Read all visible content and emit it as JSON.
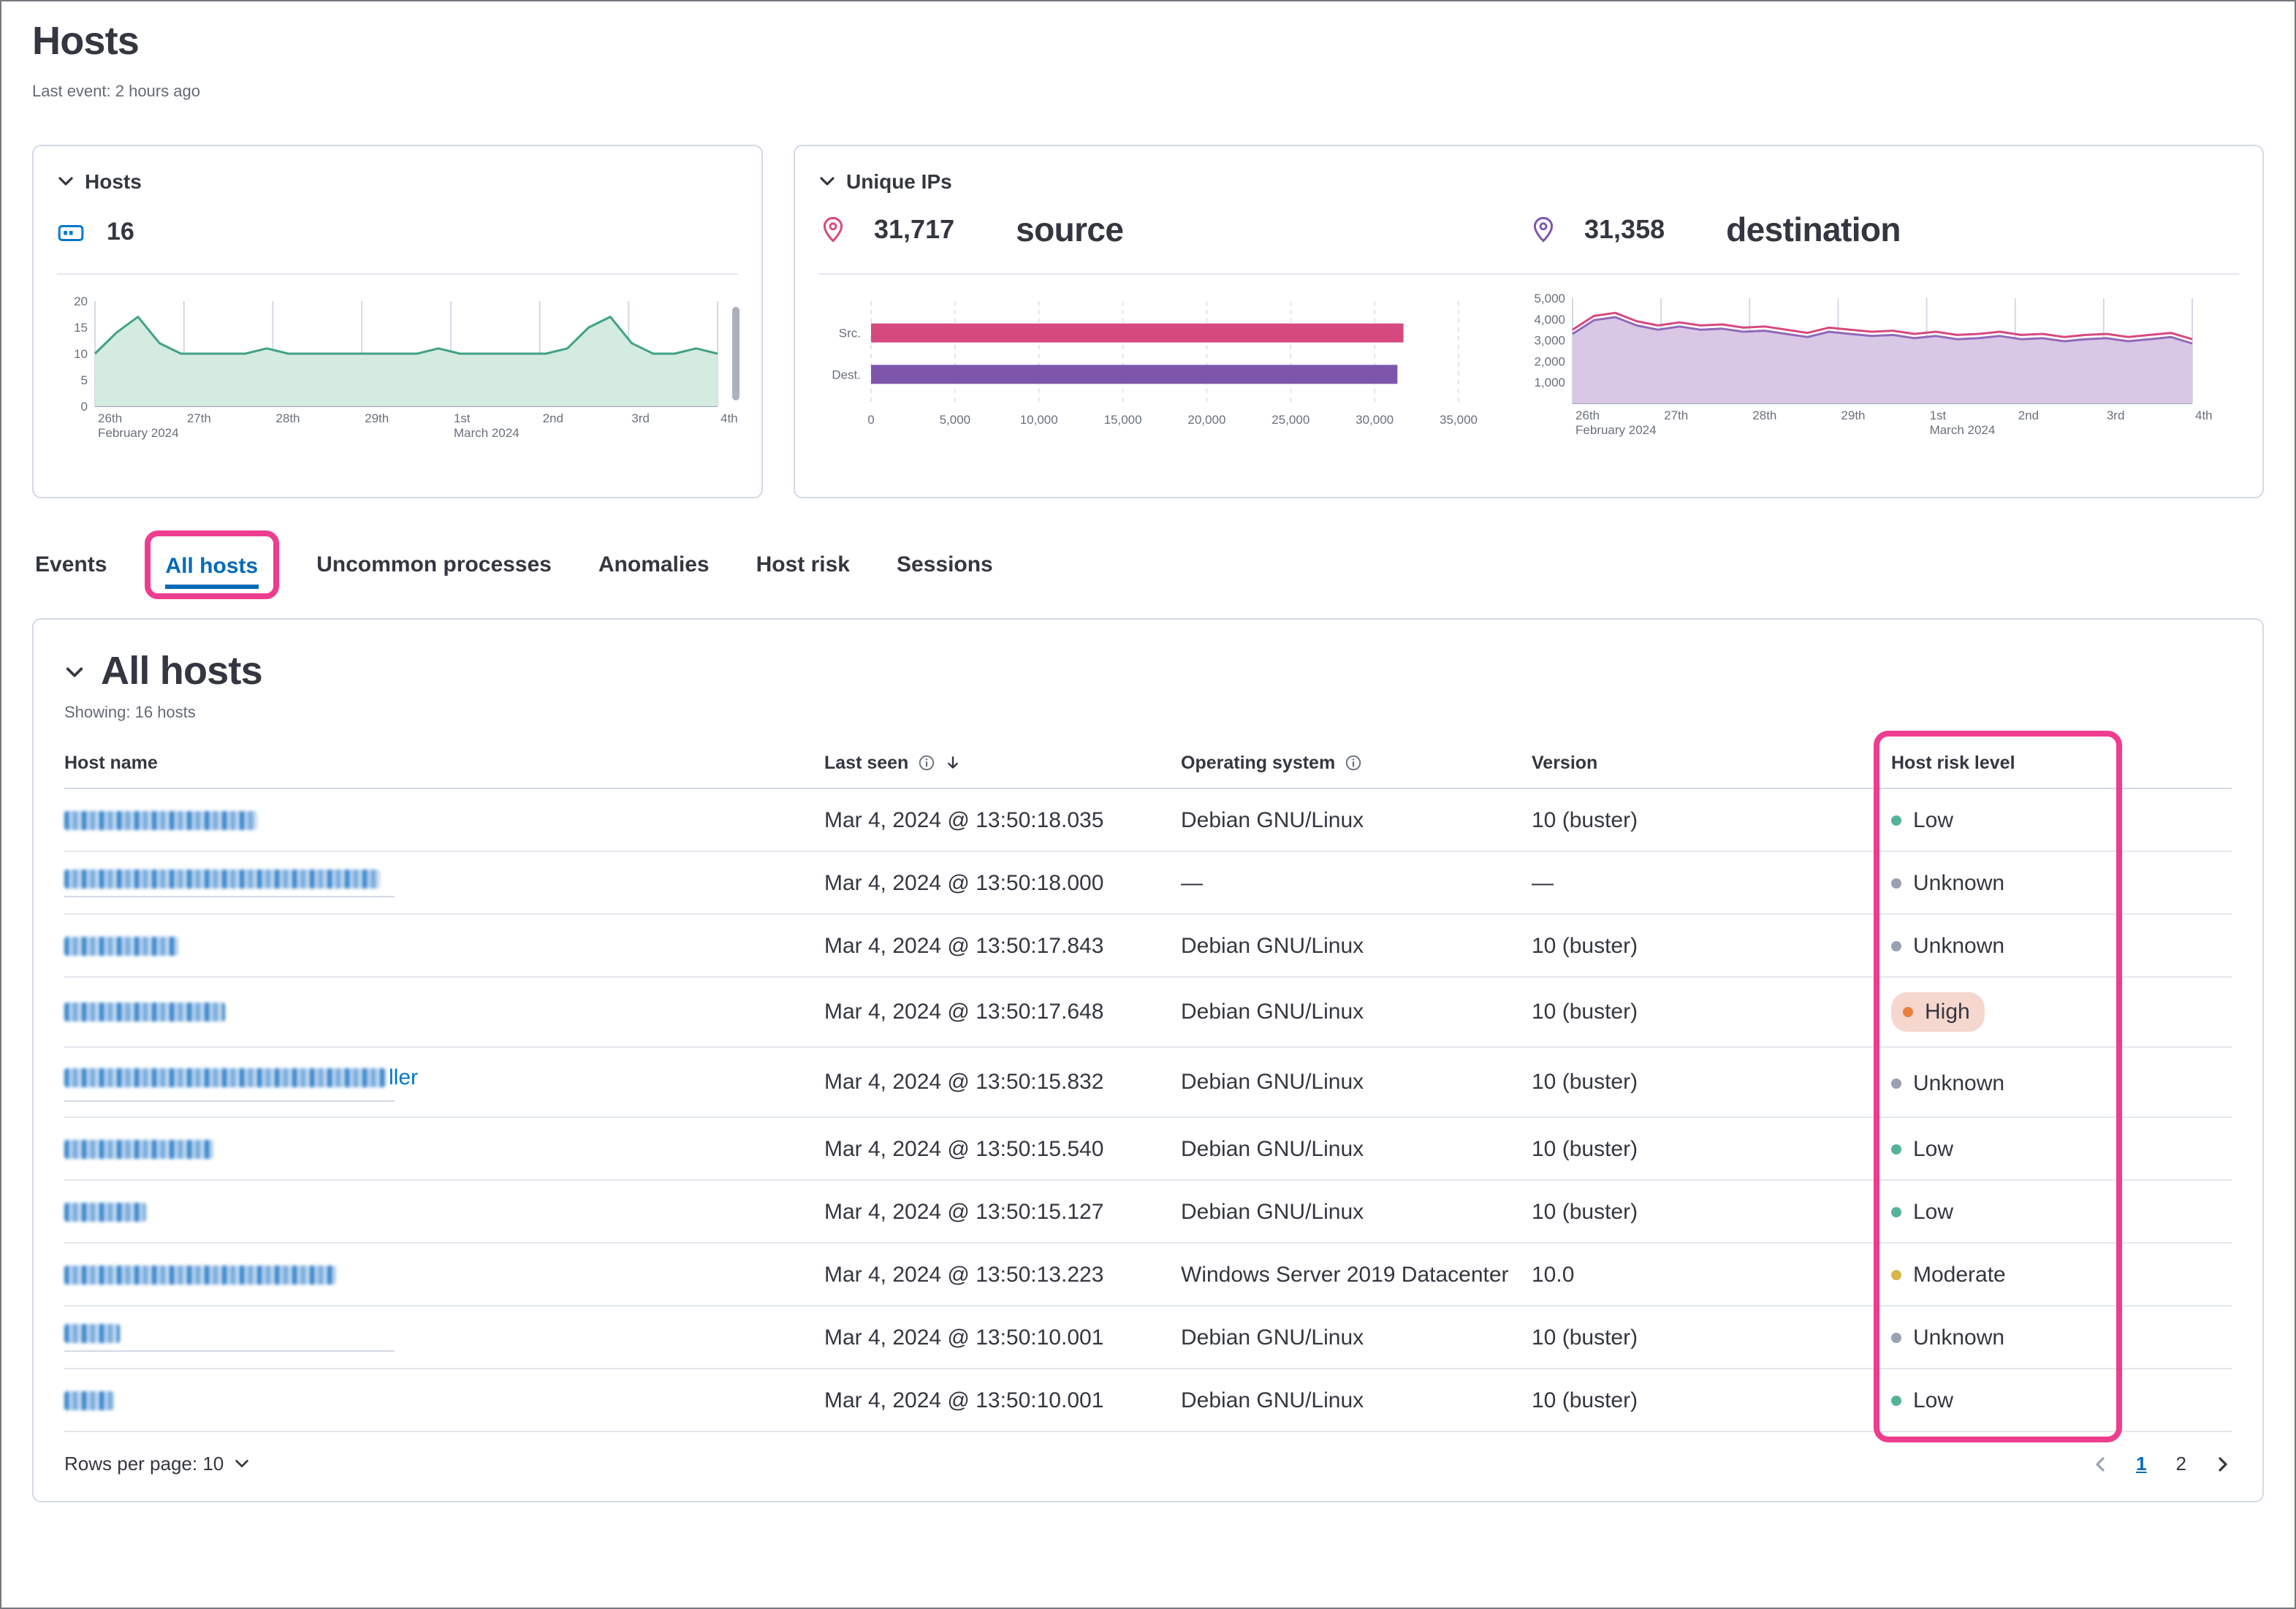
{
  "annotation_color": "#ee3d8f",
  "page": {
    "title": "Hosts",
    "last_event": "Last event: 2 hours ago"
  },
  "hosts_panel": {
    "title": "Hosts",
    "count": "16",
    "chart": {
      "type": "area",
      "ylim": [
        0,
        20
      ],
      "yticks": [
        {
          "v": 0,
          "l": "0"
        },
        {
          "v": 5,
          "l": "5"
        },
        {
          "v": 10,
          "l": "10"
        },
        {
          "v": 15,
          "l": "15"
        },
        {
          "v": 20,
          "l": "20"
        }
      ],
      "xticks": [
        {
          "l": "26th",
          "sub": "February 2024"
        },
        {
          "l": "27th"
        },
        {
          "l": "28th"
        },
        {
          "l": "29th"
        },
        {
          "l": "1st",
          "sub": "March 2024"
        },
        {
          "l": "2nd"
        },
        {
          "l": "3rd"
        },
        {
          "l": "4th"
        }
      ],
      "series": [
        {
          "name": "hosts",
          "color": "#41a287",
          "fill": "#d4ebdf",
          "values": [
            10,
            14,
            17,
            12,
            10,
            10,
            10,
            10,
            11,
            10,
            10,
            10,
            10,
            10,
            10,
            10,
            11,
            10,
            10,
            10,
            10,
            10,
            11,
            15,
            17,
            12,
            10,
            10,
            11,
            10
          ]
        }
      ]
    }
  },
  "unique_ips_panel": {
    "title": "Unique IPs",
    "source": {
      "count": "31,717",
      "label": "source",
      "color": "#d6497f"
    },
    "destination": {
      "count": "31,358",
      "label": "destination",
      "color": "#7d56ac"
    },
    "bar_chart": {
      "type": "bar",
      "categories": [
        "Src.",
        "Dest."
      ],
      "values": [
        31717,
        31358
      ],
      "colors": [
        "#d6497f",
        "#7d56ac"
      ],
      "xlim": [
        0,
        35000
      ],
      "xticks": [
        {
          "v": 0,
          "l": "0"
        },
        {
          "v": 5000,
          "l": "5,000"
        },
        {
          "v": 10000,
          "l": "10,000"
        },
        {
          "v": 15000,
          "l": "15,000"
        },
        {
          "v": 20000,
          "l": "20,000"
        },
        {
          "v": 25000,
          "l": "25,000"
        },
        {
          "v": 30000,
          "l": "30,000"
        },
        {
          "v": 35000,
          "l": "35,000"
        }
      ]
    },
    "area_chart": {
      "type": "area",
      "ylim": [
        0,
        5000
      ],
      "yticks": [
        {
          "v": 1000,
          "l": "1,000"
        },
        {
          "v": 2000,
          "l": "2,000"
        },
        {
          "v": 3000,
          "l": "3,000"
        },
        {
          "v": 4000,
          "l": "4,000"
        },
        {
          "v": 5000,
          "l": "5,000"
        }
      ],
      "xticks": [
        {
          "l": "26th",
          "sub": "February 2024"
        },
        {
          "l": "27th"
        },
        {
          "l": "28th"
        },
        {
          "l": "29th"
        },
        {
          "l": "1st",
          "sub": "March 2024"
        },
        {
          "l": "2nd"
        },
        {
          "l": "3rd"
        },
        {
          "l": "4th"
        }
      ],
      "series": [
        {
          "name": "destination",
          "color": "#9069b8",
          "fill": "#d9c7e6",
          "values": [
            3300,
            3950,
            4100,
            3700,
            3500,
            3650,
            3500,
            3550,
            3400,
            3450,
            3300,
            3150,
            3400,
            3300,
            3200,
            3250,
            3100,
            3200,
            3050,
            3100,
            3200,
            3050,
            3100,
            2950,
            3050,
            3100,
            2950,
            3050,
            3150,
            2850
          ]
        },
        {
          "name": "source",
          "color": "#d6497f",
          "values": [
            3500,
            4150,
            4300,
            3900,
            3700,
            3850,
            3700,
            3750,
            3600,
            3650,
            3500,
            3350,
            3600,
            3500,
            3400,
            3450,
            3300,
            3400,
            3250,
            3300,
            3400,
            3250,
            3300,
            3150,
            3250,
            3300,
            3150,
            3250,
            3350,
            3050
          ]
        }
      ]
    }
  },
  "tabs": [
    {
      "label": "Events"
    },
    {
      "label": "All hosts",
      "selected": true,
      "annotated": true
    },
    {
      "label": "Uncommon processes"
    },
    {
      "label": "Anomalies"
    },
    {
      "label": "Host risk"
    },
    {
      "label": "Sessions"
    }
  ],
  "all_hosts": {
    "title": "All hosts",
    "showing": "Showing: 16 hosts",
    "columns": [
      "Host name",
      "Last seen",
      "Operating system",
      "Version",
      "Host risk level"
    ],
    "risk_colors": {
      "Low": "#54b399",
      "Unknown": "#98a2b3",
      "High": "#e8803d",
      "Moderate": "#d6b54a"
    },
    "rows": [
      {
        "name_redacted": true,
        "name_width": 132,
        "last_seen": "Mar 4, 2024 @ 13:50:18.035",
        "os": "Debian GNU/Linux",
        "version": "10 (buster)",
        "risk": "Low"
      },
      {
        "name_redacted": true,
        "name_width": 216,
        "underline": 226,
        "last_seen": "Mar 4, 2024 @ 13:50:18.000",
        "os": "—",
        "version": "—",
        "risk": "Unknown"
      },
      {
        "name_redacted": true,
        "name_width": 78,
        "last_seen": "Mar 4, 2024 @ 13:50:17.843",
        "os": "Debian GNU/Linux",
        "version": "10 (buster)",
        "risk": "Unknown"
      },
      {
        "name_redacted": true,
        "name_width": 110,
        "last_seen": "Mar 4, 2024 @ 13:50:17.648",
        "os": "Debian GNU/Linux",
        "version": "10 (buster)",
        "risk": "High"
      },
      {
        "name_redacted": true,
        "name_width": 220,
        "name_suffix": "ller",
        "underline": 226,
        "last_seen": "Mar 4, 2024 @ 13:50:15.832",
        "os": "Debian GNU/Linux",
        "version": "10 (buster)",
        "risk": "Unknown"
      },
      {
        "name_redacted": true,
        "name_width": 102,
        "last_seen": "Mar 4, 2024 @ 13:50:15.540",
        "os": "Debian GNU/Linux",
        "version": "10 (buster)",
        "risk": "Low"
      },
      {
        "name_redacted": true,
        "name_width": 56,
        "last_seen": "Mar 4, 2024 @ 13:50:15.127",
        "os": "Debian GNU/Linux",
        "version": "10 (buster)",
        "risk": "Low"
      },
      {
        "name_redacted": true,
        "name_width": 186,
        "last_seen": "Mar 4, 2024 @ 13:50:13.223",
        "os": "Windows Server 2019 Datacenter",
        "version": "10.0",
        "risk": "Moderate"
      },
      {
        "name_redacted": true,
        "name_width": 38,
        "underline": 226,
        "last_seen": "Mar 4, 2024 @ 13:50:10.001",
        "os": "Debian GNU/Linux",
        "version": "10 (buster)",
        "risk": "Unknown"
      },
      {
        "name_redacted": true,
        "name_width": 34,
        "last_seen": "Mar 4, 2024 @ 13:50:10.001",
        "os": "Debian GNU/Linux",
        "version": "10 (buster)",
        "risk": "Low"
      }
    ],
    "rows_per_page_label": "Rows per page: 10",
    "pagination": {
      "pages": [
        "1",
        "2"
      ],
      "active": "1"
    }
  }
}
